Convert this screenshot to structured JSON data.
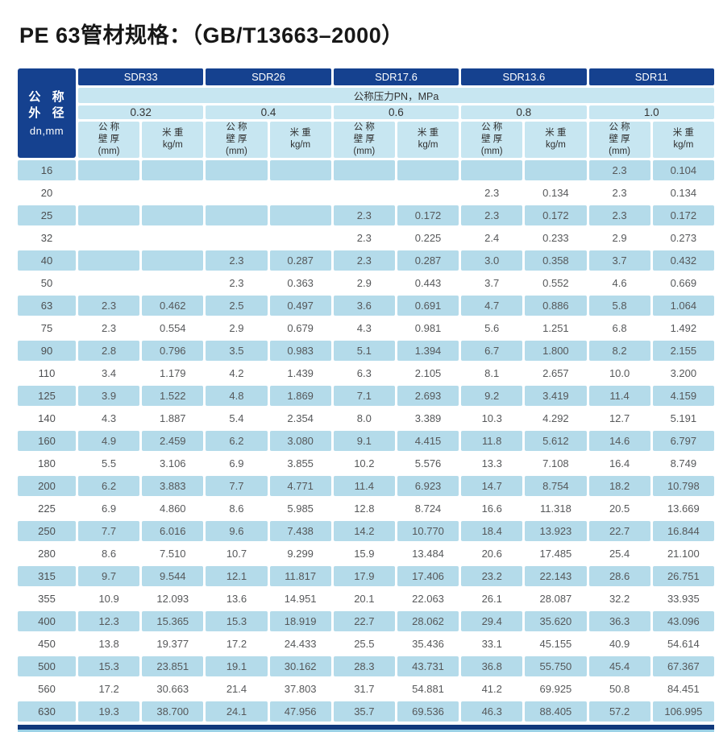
{
  "page": {
    "title": "PE 63管材规格：（GB/T13663–2000）"
  },
  "colors": {
    "header_navy": "#15418f",
    "header_light_blue": "#c7e6f1",
    "row_band_blue": "#b4dbea",
    "data_text": "#56585a",
    "bottom_rule_navy": "#10397c",
    "bottom_rule_light": "#9bd1e6"
  },
  "table": {
    "dn_header": {
      "line1": "公 称",
      "line2": "外 径",
      "line3": "dn,mm"
    },
    "pn_label": "公称压力PN，MPa",
    "groups": [
      {
        "sdr": "SDR33",
        "pressure": "0.32"
      },
      {
        "sdr": "SDR26",
        "pressure": "0.4"
      },
      {
        "sdr": "SDR17.6",
        "pressure": "0.6"
      },
      {
        "sdr": "SDR13.6",
        "pressure": "0.8"
      },
      {
        "sdr": "SDR11",
        "pressure": "1.0"
      }
    ],
    "col_labels": {
      "wall": {
        "line1": "公 称",
        "line2": "壁 厚",
        "line3": "(mm)"
      },
      "weight": {
        "line1": "米 重",
        "line2": "kg/m"
      }
    },
    "rows": [
      {
        "dn": "16",
        "values": [
          "",
          "",
          "",
          "",
          "",
          "",
          "",
          "",
          "2.3",
          "0.104"
        ]
      },
      {
        "dn": "20",
        "values": [
          "",
          "",
          "",
          "",
          "",
          "",
          "2.3",
          "0.134",
          "2.3",
          "0.134"
        ]
      },
      {
        "dn": "25",
        "values": [
          "",
          "",
          "",
          "",
          "2.3",
          "0.172",
          "2.3",
          "0.172",
          "2.3",
          "0.172"
        ]
      },
      {
        "dn": "32",
        "values": [
          "",
          "",
          "",
          "",
          "2.3",
          "0.225",
          "2.4",
          "0.233",
          "2.9",
          "0.273"
        ]
      },
      {
        "dn": "40",
        "values": [
          "",
          "",
          "2.3",
          "0.287",
          "2.3",
          "0.287",
          "3.0",
          "0.358",
          "3.7",
          "0.432"
        ]
      },
      {
        "dn": "50",
        "values": [
          "",
          "",
          "2.3",
          "0.363",
          "2.9",
          "0.443",
          "3.7",
          "0.552",
          "4.6",
          "0.669"
        ]
      },
      {
        "dn": "63",
        "values": [
          "2.3",
          "0.462",
          "2.5",
          "0.497",
          "3.6",
          "0.691",
          "4.7",
          "0.886",
          "5.8",
          "1.064"
        ]
      },
      {
        "dn": "75",
        "values": [
          "2.3",
          "0.554",
          "2.9",
          "0.679",
          "4.3",
          "0.981",
          "5.6",
          "1.251",
          "6.8",
          "1.492"
        ]
      },
      {
        "dn": "90",
        "values": [
          "2.8",
          "0.796",
          "3.5",
          "0.983",
          "5.1",
          "1.394",
          "6.7",
          "1.800",
          "8.2",
          "2.155"
        ]
      },
      {
        "dn": "110",
        "values": [
          "3.4",
          "1.179",
          "4.2",
          "1.439",
          "6.3",
          "2.105",
          "8.1",
          "2.657",
          "10.0",
          "3.200"
        ]
      },
      {
        "dn": "125",
        "values": [
          "3.9",
          "1.522",
          "4.8",
          "1.869",
          "7.1",
          "2.693",
          "9.2",
          "3.419",
          "11.4",
          "4.159"
        ]
      },
      {
        "dn": "140",
        "values": [
          "4.3",
          "1.887",
          "5.4",
          "2.354",
          "8.0",
          "3.389",
          "10.3",
          "4.292",
          "12.7",
          "5.191"
        ]
      },
      {
        "dn": "160",
        "values": [
          "4.9",
          "2.459",
          "6.2",
          "3.080",
          "9.1",
          "4.415",
          "11.8",
          "5.612",
          "14.6",
          "6.797"
        ]
      },
      {
        "dn": "180",
        "values": [
          "5.5",
          "3.106",
          "6.9",
          "3.855",
          "10.2",
          "5.576",
          "13.3",
          "7.108",
          "16.4",
          "8.749"
        ]
      },
      {
        "dn": "200",
        "values": [
          "6.2",
          "3.883",
          "7.7",
          "4.771",
          "11.4",
          "6.923",
          "14.7",
          "8.754",
          "18.2",
          "10.798"
        ]
      },
      {
        "dn": "225",
        "values": [
          "6.9",
          "4.860",
          "8.6",
          "5.985",
          "12.8",
          "8.724",
          "16.6",
          "11.318",
          "20.5",
          "13.669"
        ]
      },
      {
        "dn": "250",
        "values": [
          "7.7",
          "6.016",
          "9.6",
          "7.438",
          "14.2",
          "10.770",
          "18.4",
          "13.923",
          "22.7",
          "16.844"
        ]
      },
      {
        "dn": "280",
        "values": [
          "8.6",
          "7.510",
          "10.7",
          "9.299",
          "15.9",
          "13.484",
          "20.6",
          "17.485",
          "25.4",
          "21.100"
        ]
      },
      {
        "dn": "315",
        "values": [
          "9.7",
          "9.544",
          "12.1",
          "11.817",
          "17.9",
          "17.406",
          "23.2",
          "22.143",
          "28.6",
          "26.751"
        ]
      },
      {
        "dn": "355",
        "values": [
          "10.9",
          "12.093",
          "13.6",
          "14.951",
          "20.1",
          "22.063",
          "26.1",
          "28.087",
          "32.2",
          "33.935"
        ]
      },
      {
        "dn": "400",
        "values": [
          "12.3",
          "15.365",
          "15.3",
          "18.919",
          "22.7",
          "28.062",
          "29.4",
          "35.620",
          "36.3",
          "43.096"
        ]
      },
      {
        "dn": "450",
        "values": [
          "13.8",
          "19.377",
          "17.2",
          "24.433",
          "25.5",
          "35.436",
          "33.1",
          "45.155",
          "40.9",
          "54.614"
        ]
      },
      {
        "dn": "500",
        "values": [
          "15.3",
          "23.851",
          "19.1",
          "30.162",
          "28.3",
          "43.731",
          "36.8",
          "55.750",
          "45.4",
          "67.367"
        ]
      },
      {
        "dn": "560",
        "values": [
          "17.2",
          "30.663",
          "21.4",
          "37.803",
          "31.7",
          "54.881",
          "41.2",
          "69.925",
          "50.8",
          "84.451"
        ]
      },
      {
        "dn": "630",
        "values": [
          "19.3",
          "38.700",
          "24.1",
          "47.956",
          "35.7",
          "69.536",
          "46.3",
          "88.405",
          "57.2",
          "106.995"
        ]
      }
    ]
  }
}
